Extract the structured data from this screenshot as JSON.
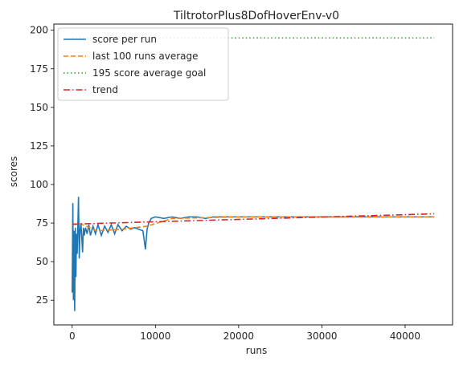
{
  "chart_data": {
    "type": "line",
    "title": "TiltrotorPlus8DofHoverEnv-v0",
    "xlabel": "runs",
    "ylabel": "scores",
    "xlim": [
      -2200,
      45700
    ],
    "ylim": [
      9,
      204
    ],
    "xticks": [
      0,
      10000,
      20000,
      30000,
      40000
    ],
    "xtick_labels": [
      "0",
      "10000",
      "20000",
      "30000",
      "40000"
    ],
    "yticks": [
      25,
      50,
      75,
      100,
      125,
      150,
      175,
      200
    ],
    "ytick_labels": [
      "25",
      "50",
      "75",
      "100",
      "125",
      "150",
      "175",
      "200"
    ],
    "grid": false,
    "legend_position": "top-left",
    "series": [
      {
        "name": "score per run",
        "style": "solid",
        "color": "#1f77b4",
        "x": [
          0,
          80,
          150,
          220,
          300,
          380,
          450,
          520,
          600,
          680,
          760,
          850,
          950,
          1050,
          1150,
          1250,
          1350,
          1450,
          1600,
          1800,
          2000,
          2200,
          2500,
          2800,
          3100,
          3500,
          3900,
          4300,
          4700,
          5100,
          5500,
          6000,
          6500,
          7000,
          7500,
          8000,
          8500,
          8800,
          9000,
          9200,
          9500,
          10000,
          11000,
          12000,
          13000,
          14000,
          15000,
          16000,
          17000,
          18000,
          20000,
          22000,
          24000,
          26000,
          27000,
          28000,
          30000,
          32000,
          34000,
          36000,
          38000,
          40000,
          42000,
          43500
        ],
        "y": [
          30,
          88,
          25,
          70,
          18,
          72,
          40,
          68,
          55,
          73,
          92,
          52,
          70,
          75,
          66,
          56,
          72,
          67,
          72,
          68,
          74,
          67,
          73,
          68,
          74,
          67,
          73,
          69,
          74,
          68,
          74,
          70,
          73,
          71,
          72,
          71,
          70,
          58,
          71,
          75,
          78,
          79,
          78,
          79,
          78,
          79,
          79,
          78,
          79,
          79,
          79,
          79,
          79,
          79,
          79,
          79,
          79,
          79,
          79,
          79,
          79,
          79,
          79,
          79
        ]
      },
      {
        "name": "last 100 runs average",
        "style": "dashed",
        "color": "#ff7f0e",
        "x": [
          0,
          1000,
          3000,
          6000,
          9000,
          12000,
          20000,
          30000,
          43500
        ],
        "y": [
          74,
          74.5,
          70,
          71,
          73,
          78,
          79,
          79,
          79
        ]
      },
      {
        "name": "195 score average goal",
        "style": "dotted",
        "color": "#2ca02c",
        "x": [
          0,
          43500
        ],
        "y": [
          195,
          195
        ]
      },
      {
        "name": "trend",
        "style": "dashdot",
        "color": "#d62728",
        "x": [
          0,
          43500
        ],
        "y": [
          74.3,
          81
        ]
      }
    ]
  }
}
